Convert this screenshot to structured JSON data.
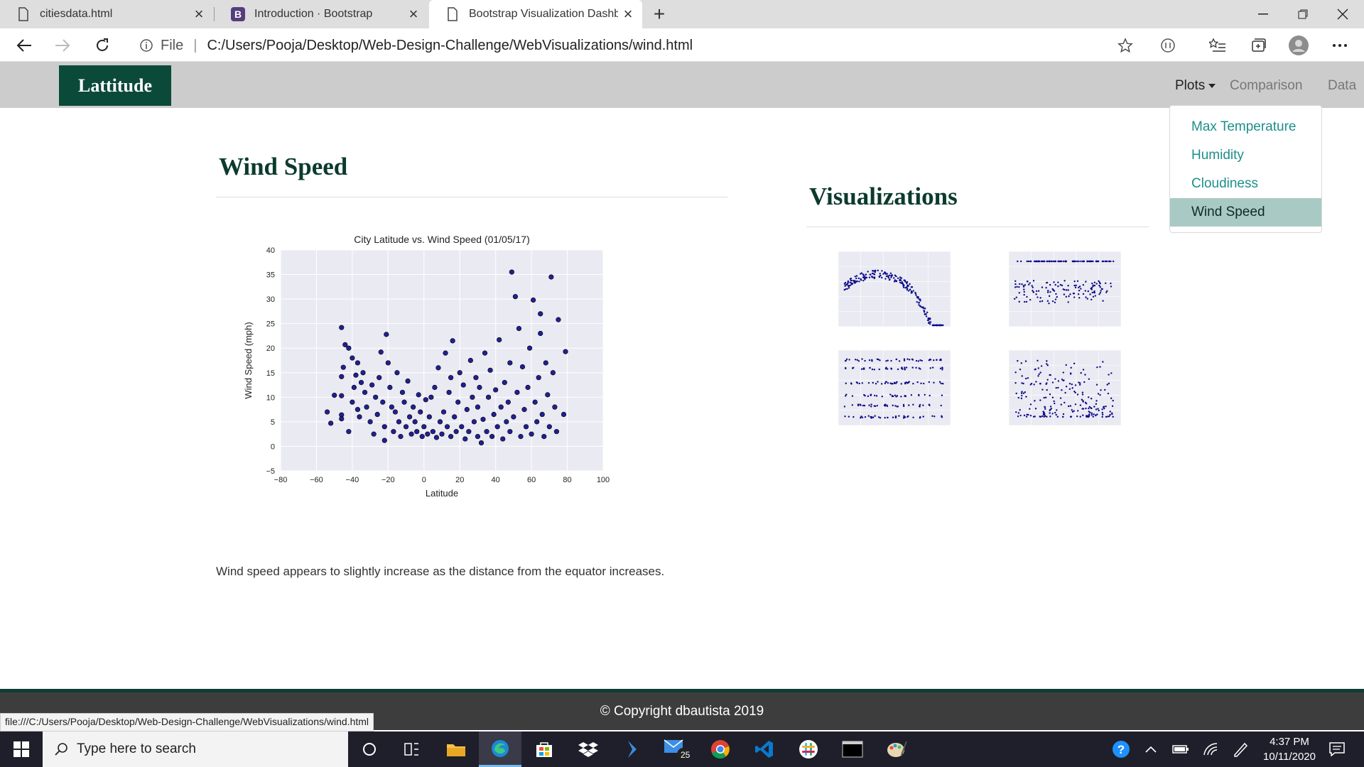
{
  "browser": {
    "tabs": [
      {
        "title": "citiesdata.html",
        "icon": "file-icon",
        "active": false
      },
      {
        "title": "Introduction · Bootstrap",
        "icon": "bootstrap-logo-icon",
        "active": false
      },
      {
        "title": "Bootstrap Visualization Dashboa",
        "icon": "file-icon",
        "active": true
      }
    ],
    "new_tab": "+",
    "url_scheme_label": "File",
    "url": "C:/Users/Pooja/Desktop/Web-Design-Challenge/WebVisualizations/wind.html",
    "status_url": "file:///C:/Users/Pooja/Desktop/Web-Design-Challenge/WebVisualizations/wind.html"
  },
  "navbar": {
    "brand": "Lattitude",
    "links": {
      "plots": "Plots",
      "comparison": "Comparison",
      "data": "Data"
    },
    "dropdown": [
      {
        "label": "Max Temperature",
        "active": false
      },
      {
        "label": "Humidity",
        "active": false
      },
      {
        "label": "Cloudiness",
        "active": false
      },
      {
        "label": "Wind Speed",
        "active": true
      }
    ]
  },
  "main": {
    "title": "Wind Speed",
    "description": "Wind speed appears to slightly increase as the distance from the equator increases."
  },
  "side": {
    "title": "Visualizations",
    "thumbnails": [
      "Max Temperature",
      "Humidity",
      "Cloudiness",
      "Wind Speed"
    ]
  },
  "footer": {
    "copyright": "© Copyright dbautista 2019"
  },
  "taskbar": {
    "search_placeholder": "Type here to search",
    "time": "4:37 PM",
    "date": "10/11/2020",
    "mail_badge": "25"
  },
  "colors": {
    "brand": "#0b4a38",
    "link": "#1e8f8a",
    "active_item": "#a9c9c4",
    "marker": "#0a0a8a",
    "plot_bg": "#eaeaf2"
  },
  "chart_data": {
    "type": "scatter",
    "title": "City Latitude vs. Wind Speed (01/05/17)",
    "xlabel": "Latitude",
    "ylabel": "Wind Speed (mph)",
    "xlim": [
      -80,
      100
    ],
    "ylim": [
      -5,
      40
    ],
    "xticks": [
      "−80",
      "−60",
      "−40",
      "−20",
      "0",
      "20",
      "40",
      "60",
      "80",
      "100"
    ],
    "yticks": [
      "−5",
      "0",
      "5",
      "10",
      "15",
      "20",
      "25",
      "30",
      "35",
      "40"
    ],
    "grid": true,
    "points": [
      [
        -54,
        7
      ],
      [
        -52,
        4.7
      ],
      [
        -50,
        10.4
      ],
      [
        -46,
        24.2
      ],
      [
        -46,
        14.2
      ],
      [
        -46,
        6.4
      ],
      [
        -46,
        5.6
      ],
      [
        -46,
        10.3
      ],
      [
        -45,
        16.1
      ],
      [
        -44,
        20.7
      ],
      [
        -42,
        20
      ],
      [
        -42,
        3
      ],
      [
        -40,
        18
      ],
      [
        -40,
        9
      ],
      [
        -39,
        12
      ],
      [
        -38,
        14.5
      ],
      [
        -37,
        17
      ],
      [
        -37,
        7.5
      ],
      [
        -36,
        6
      ],
      [
        -35,
        13
      ],
      [
        -34,
        15
      ],
      [
        -33,
        11
      ],
      [
        -32,
        8
      ],
      [
        -30,
        5
      ],
      [
        -29,
        12.5
      ],
      [
        -28,
        2.5
      ],
      [
        -27,
        10
      ],
      [
        -26,
        6.5
      ],
      [
        -25,
        14
      ],
      [
        -24,
        19.2
      ],
      [
        -23,
        9
      ],
      [
        -22,
        4
      ],
      [
        -22,
        1.2
      ],
      [
        -21,
        22.8
      ],
      [
        -20,
        17
      ],
      [
        -19,
        12
      ],
      [
        -18,
        8
      ],
      [
        -17,
        3
      ],
      [
        -16,
        7
      ],
      [
        -15,
        15
      ],
      [
        -14,
        5
      ],
      [
        -13,
        2
      ],
      [
        -12,
        11
      ],
      [
        -11,
        9
      ],
      [
        -10,
        4
      ],
      [
        -9,
        13.3
      ],
      [
        -8,
        6
      ],
      [
        -7,
        2.5
      ],
      [
        -6,
        8
      ],
      [
        -5,
        5
      ],
      [
        -4,
        3
      ],
      [
        -3,
        10.5
      ],
      [
        -2,
        7
      ],
      [
        -1,
        2
      ],
      [
        0,
        4
      ],
      [
        1,
        9.5
      ],
      [
        2,
        2.5
      ],
      [
        3,
        6
      ],
      [
        4,
        10
      ],
      [
        5,
        3
      ],
      [
        6,
        12
      ],
      [
        7,
        1.8
      ],
      [
        8,
        16
      ],
      [
        9,
        5
      ],
      [
        10,
        2.5
      ],
      [
        11,
        7
      ],
      [
        12,
        19
      ],
      [
        13,
        4
      ],
      [
        14,
        11
      ],
      [
        15,
        2
      ],
      [
        15,
        14
      ],
      [
        16,
        21.5
      ],
      [
        17,
        6
      ],
      [
        18,
        3
      ],
      [
        19,
        9
      ],
      [
        20,
        15
      ],
      [
        21,
        4
      ],
      [
        22,
        12.5
      ],
      [
        23,
        1.5
      ],
      [
        24,
        7.5
      ],
      [
        25,
        3
      ],
      [
        26,
        17.5
      ],
      [
        27,
        10
      ],
      [
        28,
        5
      ],
      [
        29,
        14
      ],
      [
        30,
        2
      ],
      [
        30,
        8
      ],
      [
        31,
        12
      ],
      [
        32,
        0.7
      ],
      [
        33,
        5.5
      ],
      [
        34,
        19
      ],
      [
        35,
        3
      ],
      [
        36,
        10
      ],
      [
        37,
        15.5
      ],
      [
        38,
        2
      ],
      [
        39,
        6.5
      ],
      [
        40,
        11.5
      ],
      [
        41,
        4
      ],
      [
        42,
        21.7
      ],
      [
        43,
        8
      ],
      [
        44,
        1.5
      ],
      [
        45,
        13
      ],
      [
        46,
        5
      ],
      [
        47,
        9
      ],
      [
        48,
        17
      ],
      [
        48,
        3
      ],
      [
        49,
        35.5
      ],
      [
        50,
        6
      ],
      [
        51,
        30.5
      ],
      [
        52,
        11
      ],
      [
        53,
        24
      ],
      [
        54,
        2
      ],
      [
        55,
        16.2
      ],
      [
        56,
        7.5
      ],
      [
        57,
        4
      ],
      [
        58,
        12
      ],
      [
        59,
        20
      ],
      [
        60,
        2.5
      ],
      [
        61,
        29.8
      ],
      [
        62,
        9
      ],
      [
        63,
        5
      ],
      [
        64,
        14
      ],
      [
        65,
        27
      ],
      [
        65,
        23
      ],
      [
        66,
        6.5
      ],
      [
        67,
        2
      ],
      [
        68,
        17
      ],
      [
        69,
        10.5
      ],
      [
        70,
        4
      ],
      [
        71,
        34.5
      ],
      [
        72,
        15
      ],
      [
        73,
        8
      ],
      [
        74,
        3
      ],
      [
        75,
        25.8
      ],
      [
        78,
        6.5
      ],
      [
        79,
        19.3
      ]
    ]
  }
}
